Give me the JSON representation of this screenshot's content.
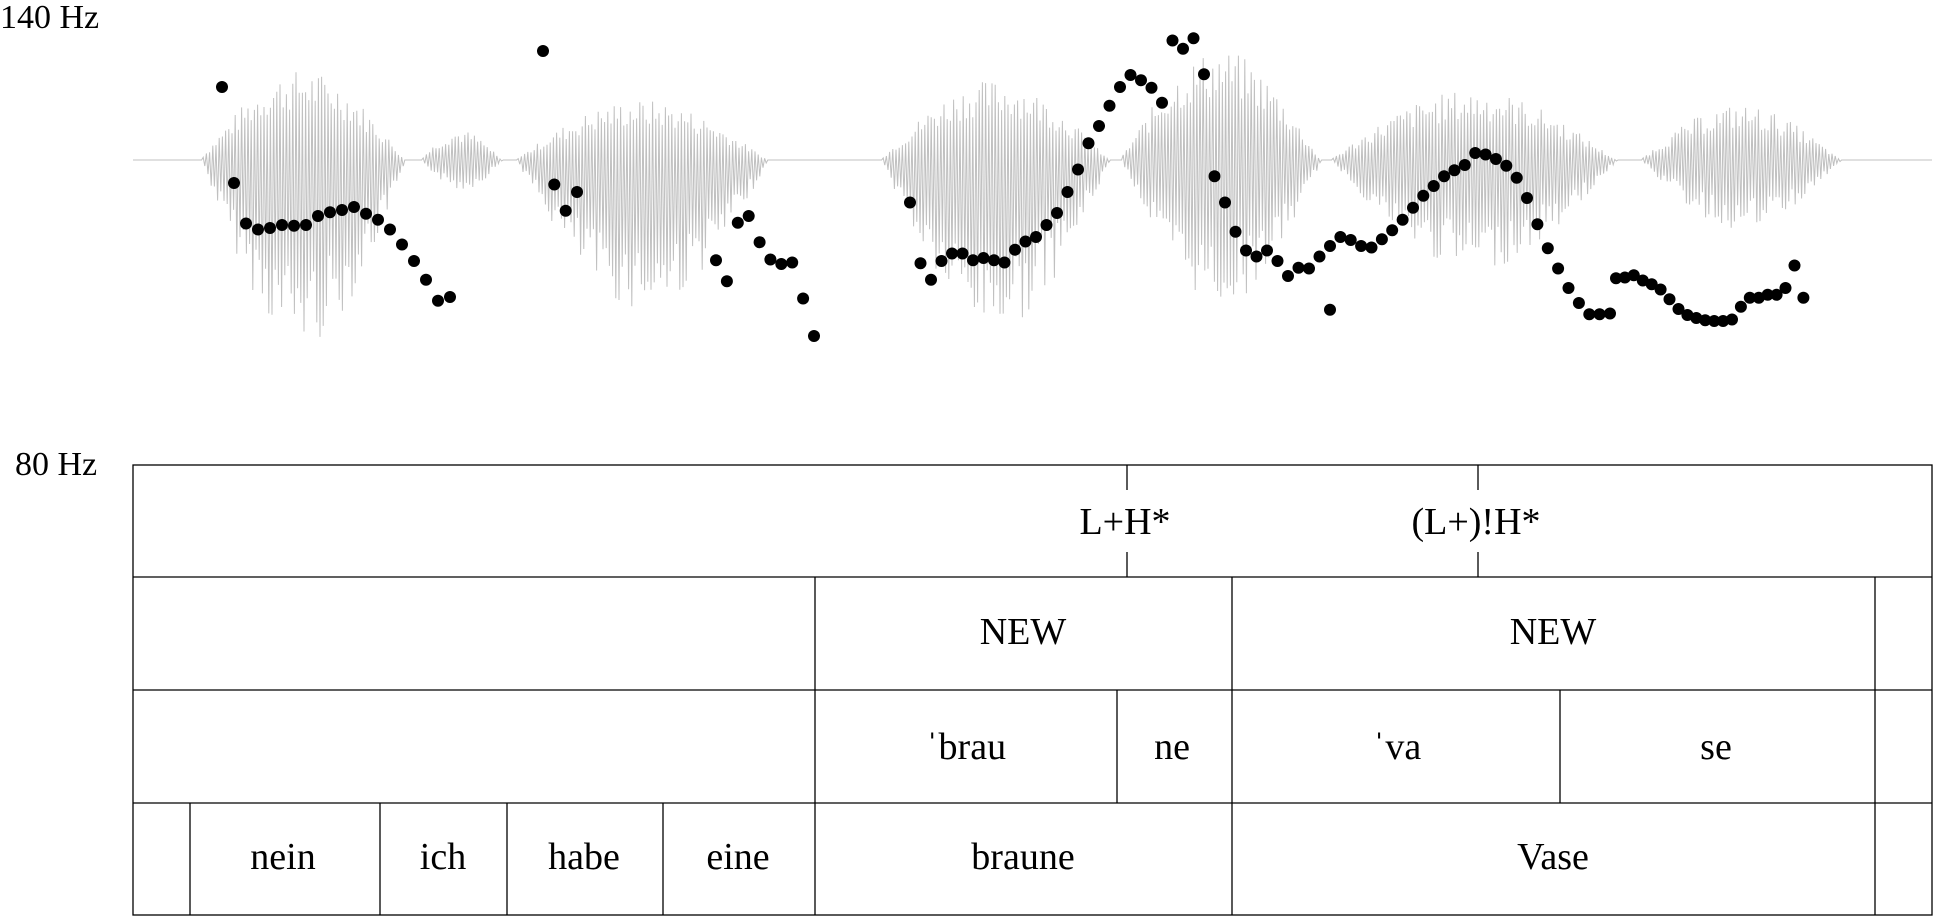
{
  "axis": {
    "top_label": "140 Hz",
    "bottom_label": "80 Hz",
    "range_hz": [
      80,
      140
    ]
  },
  "tiers": {
    "tones": [
      "L+H*",
      "(L+)!H*"
    ],
    "information_status": [
      "NEW",
      "NEW"
    ],
    "syllables": [
      "ˈbrau",
      "ne",
      "ˈva",
      "se"
    ],
    "words": [
      "nein",
      "ich",
      "habe",
      "eine",
      "braune",
      "Vase"
    ]
  },
  "chart_data": {
    "type": "scatter",
    "title": "",
    "xlabel": "",
    "ylabel": "",
    "ylim": [
      80,
      140
    ],
    "y_tick_labels": [
      "140 Hz",
      "80 Hz"
    ],
    "grid": false,
    "series": [
      {
        "marker_color": "#000000",
        "waveform_color": "#c0c0c0",
        "f0_hz": [
          130.4,
          117.6,
          112.2,
          111.4,
          111.6,
          112.0,
          111.9,
          112.0,
          113.2,
          113.7,
          114.0,
          114.4,
          113.5,
          112.7,
          111.4,
          109.4,
          107.2,
          104.7,
          101.9,
          102.4,
          135.2,
          117.4,
          113.9,
          116.4,
          107.3,
          104.5,
          112.3,
          113.2,
          109.7,
          107.4,
          106.8,
          107.0,
          102.2,
          97.2,
          115.0,
          106.9,
          104.7,
          107.2,
          108.2,
          108.2,
          107.3,
          107.6,
          107.3,
          107.0,
          108.7,
          109.8,
          110.4,
          112.0,
          113.6,
          116.4,
          119.4,
          122.9,
          125.2,
          127.9,
          130.4,
          132.0,
          131.3,
          130.3,
          128.3,
          136.6,
          135.5,
          136.9,
          132.1,
          118.5,
          115.0,
          111.1,
          108.6,
          107.8,
          108.6,
          107.2,
          105.2,
          106.3,
          106.2,
          107.8,
          100.7,
          109.2,
          110.4,
          110.0,
          109.2,
          109.0,
          110.1,
          111.3,
          112.7,
          114.3,
          115.9,
          117.2,
          118.5,
          119.3,
          120.0,
          121.6,
          121.4,
          120.8,
          119.9,
          118.3,
          115.6,
          112.1,
          108.9,
          106.2,
          103.6,
          101.6,
          100.1,
          100.1,
          100.2,
          104.9,
          105.0,
          105.3,
          104.6,
          104.1,
          103.4,
          102.1,
          100.8,
          100.0,
          99.6,
          99.3,
          99.2,
          99.2,
          99.4,
          101.1,
          102.3,
          102.3,
          102.7,
          102.7,
          103.6,
          106.6,
          102.3
        ]
      }
    ]
  }
}
